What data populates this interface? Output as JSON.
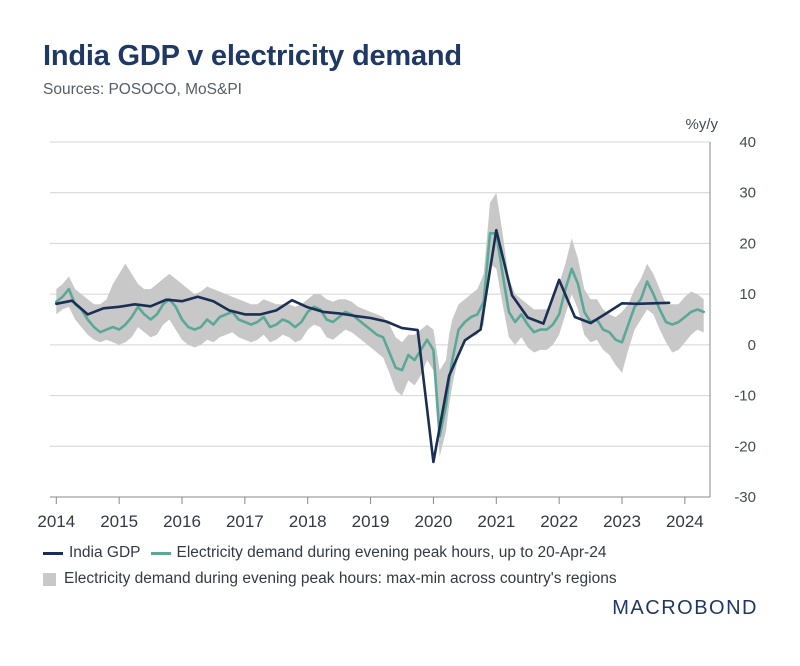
{
  "title": "India GDP v electricity demand",
  "subtitle": "Sources: POSOCO, MoS&PI",
  "brand": "MACROBOND",
  "colors": {
    "gdp": "#1b2f55",
    "elec": "#5ba898",
    "band": "#c7c8c7",
    "grid": "#d4d4d4",
    "axis": "#888888"
  },
  "legend": {
    "gdp": "India GDP",
    "elec": "Electricity demand during evening peak hours, up to 20-Apr-24",
    "band": "Electricity demand during evening peak hours: max-min across country's regions"
  },
  "chart_data": {
    "type": "line",
    "title": "India GDP v electricity demand",
    "ylabel": "%y/y",
    "xlim": [
      2013.9,
      2024.4
    ],
    "ylim": [
      -30,
      40
    ],
    "yticks": [
      40,
      30,
      20,
      10,
      0,
      -10,
      -20,
      -30
    ],
    "ytick_labels": [
      "40",
      "30",
      "20",
      "10",
      "0",
      "-10",
      "-20",
      "-30"
    ],
    "xticks": [
      2014,
      2015,
      2016,
      2017,
      2018,
      2019,
      2020,
      2021,
      2022,
      2023,
      2024
    ],
    "xtick_labels": [
      "2014",
      "2015",
      "2016",
      "2017",
      "2018",
      "2019",
      "2020",
      "2021",
      "2022",
      "2023",
      "2024"
    ],
    "grid": true,
    "series": [
      {
        "name": "India GDP",
        "x": [
          2014.0,
          2014.25,
          2014.5,
          2014.75,
          2015.0,
          2015.25,
          2015.5,
          2015.75,
          2016.0,
          2016.25,
          2016.5,
          2016.75,
          2017.0,
          2017.25,
          2017.5,
          2017.75,
          2018.0,
          2018.25,
          2018.5,
          2018.75,
          2019.0,
          2019.25,
          2019.5,
          2019.75,
          2020.0,
          2020.25,
          2020.5,
          2020.75,
          2021.0,
          2021.25,
          2021.5,
          2021.75,
          2022.0,
          2022.25,
          2022.5,
          2022.75,
          2023.0,
          2023.25,
          2023.5,
          2023.75
        ],
        "y": [
          8.1,
          8.7,
          6.0,
          7.2,
          7.5,
          8.0,
          7.6,
          8.9,
          8.6,
          9.5,
          8.6,
          6.8,
          6.0,
          6.0,
          6.8,
          8.8,
          7.4,
          6.5,
          6.2,
          5.7,
          5.3,
          4.6,
          3.3,
          2.9,
          -23.1,
          -6.1,
          0.9,
          3.0,
          22.6,
          9.8,
          5.4,
          4.2,
          12.8,
          5.5,
          4.3,
          6.2,
          8.2,
          8.1,
          8.2,
          8.3
        ]
      },
      {
        "name": "Electricity demand during evening peak hours, up to 20-Apr-24",
        "x": [
          2014.0,
          2014.1,
          2014.2,
          2014.3,
          2014.4,
          2014.5,
          2014.6,
          2014.7,
          2014.8,
          2014.9,
          2015.0,
          2015.1,
          2015.2,
          2015.3,
          2015.4,
          2015.5,
          2015.6,
          2015.7,
          2015.8,
          2015.9,
          2016.0,
          2016.1,
          2016.2,
          2016.3,
          2016.4,
          2016.5,
          2016.6,
          2016.7,
          2016.8,
          2016.9,
          2017.0,
          2017.1,
          2017.2,
          2017.3,
          2017.4,
          2017.5,
          2017.6,
          2017.7,
          2017.8,
          2017.9,
          2018.0,
          2018.1,
          2018.2,
          2018.3,
          2018.4,
          2018.5,
          2018.6,
          2018.7,
          2018.8,
          2018.9,
          2019.0,
          2019.1,
          2019.2,
          2019.3,
          2019.4,
          2019.5,
          2019.6,
          2019.7,
          2019.8,
          2019.9,
          2020.0,
          2020.1,
          2020.2,
          2020.25,
          2020.3,
          2020.4,
          2020.5,
          2020.6,
          2020.7,
          2020.8,
          2020.9,
          2021.0,
          2021.1,
          2021.2,
          2021.3,
          2021.4,
          2021.5,
          2021.6,
          2021.7,
          2021.8,
          2021.9,
          2022.0,
          2022.1,
          2022.2,
          2022.3,
          2022.4,
          2022.5,
          2022.6,
          2022.7,
          2022.8,
          2022.9,
          2023.0,
          2023.1,
          2023.2,
          2023.3,
          2023.4,
          2023.5,
          2023.6,
          2023.7,
          2023.8,
          2023.9,
          2024.0,
          2024.1,
          2024.2,
          2024.3
        ],
        "y": [
          8.5,
          9.5,
          11.0,
          8.0,
          7.0,
          5.0,
          3.5,
          2.5,
          3.0,
          3.5,
          3.0,
          4.0,
          5.5,
          7.5,
          6.0,
          5.0,
          6.0,
          8.0,
          9.0,
          7.5,
          5.0,
          3.5,
          3.0,
          3.5,
          5.0,
          4.0,
          5.5,
          6.0,
          6.5,
          5.0,
          4.5,
          4.0,
          4.5,
          5.5,
          3.5,
          4.0,
          5.0,
          4.5,
          3.5,
          4.5,
          6.5,
          7.5,
          7.0,
          5.0,
          4.5,
          5.5,
          6.5,
          6.0,
          5.0,
          4.0,
          3.0,
          2.0,
          1.5,
          -1.5,
          -4.5,
          -5.0,
          -2.0,
          -3.0,
          -1.0,
          1.0,
          -1.0,
          -18.0,
          -12.0,
          -7.0,
          -3.0,
          3.0,
          4.5,
          5.5,
          6.0,
          8.5,
          22.0,
          22.0,
          14.0,
          6.5,
          4.5,
          6.0,
          4.0,
          2.5,
          3.0,
          3.0,
          4.0,
          6.0,
          11.0,
          15.0,
          12.0,
          6.5,
          4.5,
          5.0,
          3.0,
          2.5,
          1.0,
          0.5,
          4.0,
          7.5,
          9.0,
          12.5,
          10.0,
          7.0,
          4.5,
          4.0,
          4.5,
          5.5,
          6.5,
          7.0,
          6.5
        ]
      },
      {
        "name": "Electricity demand during evening peak hours: max-min across country's regions",
        "type": "area",
        "x": [
          2014.0,
          2014.1,
          2014.2,
          2014.3,
          2014.4,
          2014.5,
          2014.6,
          2014.7,
          2014.8,
          2014.9,
          2015.0,
          2015.1,
          2015.2,
          2015.3,
          2015.4,
          2015.5,
          2015.6,
          2015.7,
          2015.8,
          2015.9,
          2016.0,
          2016.1,
          2016.2,
          2016.3,
          2016.4,
          2016.5,
          2016.6,
          2016.7,
          2016.8,
          2016.9,
          2017.0,
          2017.1,
          2017.2,
          2017.3,
          2017.4,
          2017.5,
          2017.6,
          2017.7,
          2017.8,
          2017.9,
          2018.0,
          2018.1,
          2018.2,
          2018.3,
          2018.4,
          2018.5,
          2018.6,
          2018.7,
          2018.8,
          2018.9,
          2019.0,
          2019.1,
          2019.2,
          2019.3,
          2019.4,
          2019.5,
          2019.6,
          2019.7,
          2019.8,
          2019.9,
          2020.0,
          2020.1,
          2020.2,
          2020.25,
          2020.3,
          2020.4,
          2020.5,
          2020.6,
          2020.7,
          2020.8,
          2020.9,
          2021.0,
          2021.1,
          2021.2,
          2021.3,
          2021.4,
          2021.5,
          2021.6,
          2021.7,
          2021.8,
          2021.9,
          2022.0,
          2022.1,
          2022.2,
          2022.3,
          2022.4,
          2022.5,
          2022.6,
          2022.7,
          2022.8,
          2022.9,
          2023.0,
          2023.1,
          2023.2,
          2023.3,
          2023.4,
          2023.5,
          2023.6,
          2023.7,
          2023.8,
          2023.9,
          2024.0,
          2024.1,
          2024.2,
          2024.3
        ],
        "upper": [
          11.0,
          12.0,
          13.5,
          11.0,
          10.0,
          9.0,
          8.0,
          8.0,
          9.0,
          12.0,
          14.0,
          16.0,
          14.0,
          12.0,
          11.0,
          11.0,
          12.0,
          13.0,
          14.0,
          13.0,
          12.0,
          11.0,
          10.0,
          10.5,
          11.5,
          11.0,
          10.5,
          10.0,
          9.5,
          9.0,
          8.5,
          8.0,
          8.0,
          9.0,
          8.5,
          8.0,
          8.0,
          8.0,
          7.5,
          8.0,
          9.0,
          10.0,
          10.0,
          9.0,
          8.5,
          9.0,
          9.0,
          8.5,
          7.5,
          7.0,
          6.5,
          6.0,
          5.5,
          4.0,
          1.5,
          0.5,
          2.0,
          2.0,
          3.0,
          4.0,
          3.0,
          -5.0,
          -3.0,
          2.0,
          5.0,
          8.0,
          9.0,
          10.0,
          11.0,
          14.0,
          28.0,
          30.0,
          22.0,
          13.0,
          10.0,
          9.0,
          8.0,
          7.0,
          7.0,
          7.0,
          9.0,
          12.0,
          16.0,
          21.0,
          17.0,
          11.0,
          9.0,
          9.0,
          7.0,
          6.0,
          5.5,
          6.5,
          8.0,
          11.0,
          13.0,
          16.0,
          14.0,
          11.0,
          8.0,
          8.0,
          8.0,
          9.5,
          10.5,
          10.0,
          9.0
        ],
        "lower": [
          6.0,
          7.0,
          7.5,
          5.0,
          3.5,
          2.0,
          1.0,
          0.5,
          1.0,
          0.5,
          0.0,
          0.5,
          1.5,
          3.5,
          2.5,
          1.5,
          2.0,
          4.0,
          5.0,
          3.0,
          1.0,
          0.0,
          -0.5,
          0.0,
          1.0,
          0.5,
          1.5,
          2.0,
          2.5,
          1.5,
          1.0,
          0.5,
          1.0,
          2.0,
          0.5,
          1.0,
          2.0,
          1.5,
          0.5,
          1.0,
          3.0,
          4.0,
          3.5,
          1.5,
          1.0,
          2.0,
          3.0,
          2.5,
          1.5,
          0.5,
          -0.5,
          -1.5,
          -2.5,
          -5.5,
          -9.0,
          -10.0,
          -7.0,
          -8.0,
          -6.0,
          -3.0,
          -5.0,
          -22.0,
          -17.0,
          -12.0,
          -8.0,
          -2.0,
          0.5,
          1.5,
          2.0,
          4.0,
          16.0,
          15.0,
          8.0,
          1.5,
          0.0,
          1.5,
          -0.5,
          -1.5,
          -1.0,
          -1.0,
          0.0,
          2.0,
          6.0,
          10.0,
          7.0,
          2.0,
          0.5,
          1.0,
          -1.0,
          -2.0,
          -4.0,
          -5.5,
          -1.0,
          3.0,
          5.0,
          7.0,
          6.0,
          3.0,
          0.5,
          -1.5,
          -1.0,
          0.5,
          2.0,
          3.0,
          2.5
        ]
      }
    ]
  }
}
